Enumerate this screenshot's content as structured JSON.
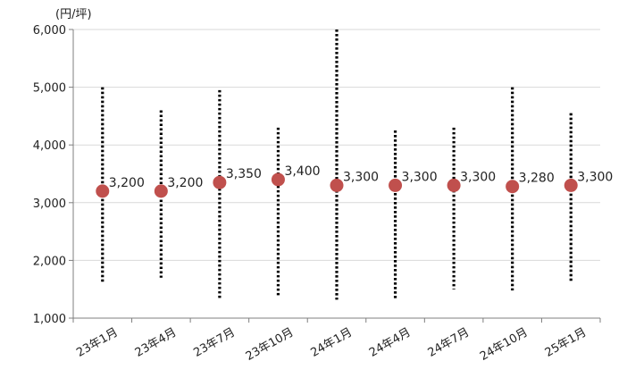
{
  "chart_data": {
    "type": "scatter",
    "unit_label": "(円/坪)",
    "categories": [
      "23年1月",
      "23年4月",
      "23年7月",
      "23年10月",
      "24年1月",
      "24年4月",
      "24年7月",
      "24年10月",
      "25年1月"
    ],
    "series": [
      {
        "values": [
          3200,
          3200,
          3350,
          3400,
          3300,
          3300,
          3300,
          3280,
          3300
        ],
        "data_labels": [
          "3,200",
          "3,200",
          "3,350",
          "3,400",
          "3,300",
          "3,300",
          "3,300",
          "3,280",
          "3,300"
        ],
        "color": "#c0504d"
      }
    ],
    "ranges": {
      "high": [
        5000,
        4600,
        4950,
        4300,
        6000,
        4250,
        4300,
        5000,
        4550
      ],
      "low": [
        1620,
        1700,
        1320,
        1380,
        1320,
        1320,
        1500,
        1480,
        1620
      ]
    },
    "ylim": [
      1000,
      6000
    ],
    "yticks": [
      1000,
      2000,
      3000,
      4000,
      5000,
      6000
    ],
    "ytick_labels": [
      "1,000",
      "2,000",
      "3,000",
      "4,000",
      "5,000",
      "6,000"
    ],
    "grid": true,
    "legend": "none",
    "xlabel": "",
    "ylabel": "",
    "title": ""
  }
}
